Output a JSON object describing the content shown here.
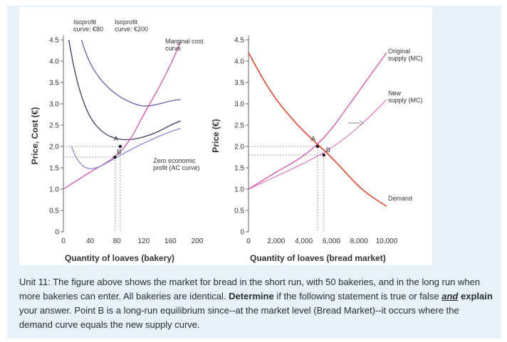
{
  "chart_data": [
    {
      "type": "line",
      "title": "",
      "xlabel": "Quantity of loaves (bakery)",
      "ylabel": "Price, Cost (€)",
      "xlim": [
        0,
        200
      ],
      "ylim": [
        0,
        4.5
      ],
      "xticks": [
        "0",
        "40",
        "80",
        "120",
        "160",
        "200"
      ],
      "yticks": [
        "0",
        "0.5",
        "1.0",
        "1.5",
        "2.0",
        "2.5",
        "3.0",
        "3.5",
        "4.0",
        "4.5"
      ],
      "series": [
        {
          "name": "Isoprofit curve: €80",
          "x": [
            8,
            15,
            25,
            40,
            60,
            80,
            100,
            120,
            140,
            160,
            175
          ],
          "y": [
            4.5,
            3.9,
            3.25,
            2.65,
            2.3,
            2.17,
            2.15,
            2.22,
            2.33,
            2.5,
            2.6
          ]
        },
        {
          "name": "Isoprofit curve: €200",
          "x": [
            27,
            35,
            45,
            60,
            80,
            100,
            120,
            140,
            160,
            175
          ],
          "y": [
            4.5,
            4.12,
            3.8,
            3.48,
            3.2,
            3.03,
            2.93,
            2.98,
            3.07,
            3.1
          ]
        },
        {
          "name": "Marginal cost curve",
          "x": [
            0,
            20,
            40,
            60,
            80,
            100,
            120,
            140,
            160,
            175
          ],
          "y": [
            1.0,
            1.2,
            1.4,
            1.58,
            1.78,
            2.15,
            2.75,
            3.3,
            3.9,
            4.45
          ]
        },
        {
          "name": "Zero economic profit (AC curve)",
          "x": [
            12,
            20,
            30,
            40,
            50,
            60,
            80,
            100,
            120,
            140,
            160,
            175
          ],
          "y": [
            2.0,
            1.7,
            1.52,
            1.47,
            1.5,
            1.57,
            1.75,
            1.92,
            2.08,
            2.22,
            2.35,
            2.42
          ]
        }
      ],
      "labels": {
        "isoprofit1": [
          "Isoprofit",
          "curve: €80"
        ],
        "isoprofit2": [
          "Isoprofit",
          "curve: €200"
        ],
        "mc": [
          "Marginal cost",
          "curve"
        ],
        "ac": [
          "Zero economic",
          "profit (AC curve)"
        ]
      },
      "points": [
        {
          "label": "A",
          "x": 85,
          "y": 2.0
        },
        {
          "label": "B",
          "x": 77,
          "y": 1.75
        }
      ]
    },
    {
      "type": "line",
      "title": "",
      "xlabel": "Quantity of loaves (bread market)",
      "ylabel": "Price (€)",
      "xlim": [
        0,
        10000
      ],
      "ylim": [
        0,
        4.5
      ],
      "xticks": [
        "0",
        "2,000",
        "4,000",
        "6,000",
        "8,000",
        "10,000"
      ],
      "yticks": [
        "0",
        "0.5",
        "1.0",
        "1.5",
        "2.0",
        "2.5",
        "3.0",
        "3.5",
        "4.0",
        "4.5"
      ],
      "series": [
        {
          "name": "Demand",
          "x": [
            0,
            1000,
            2000,
            3000,
            4000,
            5000,
            6000,
            7000,
            8000,
            9000,
            10000
          ],
          "y": [
            4.2,
            3.6,
            3.1,
            2.7,
            2.35,
            2.05,
            1.75,
            1.4,
            1.05,
            0.8,
            0.6
          ]
        },
        {
          "name": "Original supply (MC)",
          "x": [
            0,
            1000,
            2000,
            3000,
            4000,
            5000,
            6000,
            7000,
            8000,
            9000,
            10000
          ],
          "y": [
            1.0,
            1.2,
            1.4,
            1.58,
            1.78,
            2.05,
            2.4,
            2.85,
            3.3,
            3.75,
            4.2
          ]
        },
        {
          "name": "New supply (MC)",
          "x": [
            0,
            2000,
            4000,
            6000,
            8000,
            10000
          ],
          "y": [
            1.0,
            1.3,
            1.6,
            1.95,
            2.45,
            3.1
          ]
        }
      ],
      "labels": {
        "original": [
          "Original",
          "supply (MC)"
        ],
        "new": [
          "New",
          "supply (MC)"
        ],
        "demand": [
          "Demand"
        ]
      },
      "points": [
        {
          "label": "A",
          "x": 5000,
          "y": 2.0
        },
        {
          "label": "B",
          "x": 5450,
          "y": 1.8
        }
      ]
    }
  ],
  "caption": {
    "part1": "Unit 11: The figure above shows the market for bread in the short run, with 50 bakeries, and in the long run when more bakeries can enter. All bakeries are identical. ",
    "bold1": "Determine",
    "part2": " if the following statement is true or false ",
    "bold_underline": "and",
    "part3": " ",
    "bold2": "explain",
    "part4": " your answer. Point B is a long-run equilibrium since--at the market level (Bread Market)--it occurs where the demand curve equals the new supply curve."
  },
  "colors": {
    "mc": "#d64fa8",
    "demand": "#e8432a",
    "isoprofit_dark": "#3a3a66",
    "isoprofit_mid": "#6a5ab0",
    "ac": "#8f88d8",
    "panel": "#e6f2f7"
  }
}
